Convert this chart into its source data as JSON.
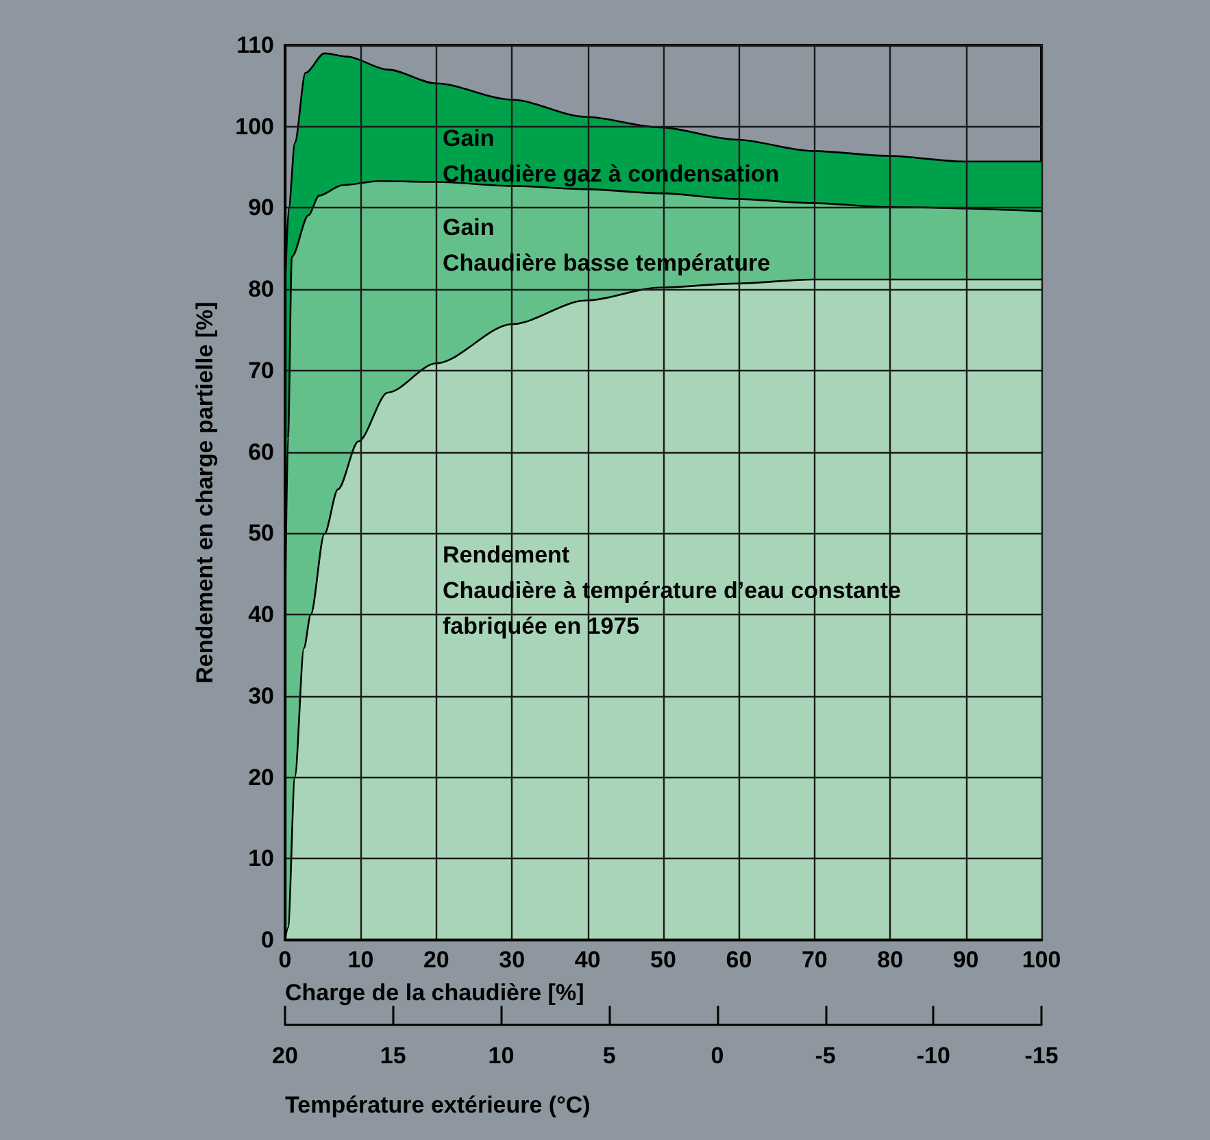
{
  "chart_data": {
    "type": "area",
    "xlabel": "Charge de la chaudière [%]",
    "ylabel": "Rendement en charge partielle [%]",
    "x2label": "Température extérieure (°C)",
    "series": [
      {
        "color": "#00a14b",
        "x": [
          0,
          0.5,
          1.3,
          2.7,
          5.2,
          8.2,
          13.6,
          20,
          30,
          39.7,
          49.6,
          59.6,
          69.7,
          79.7,
          89.7,
          100
        ],
        "values": [
          80,
          90,
          98,
          106.6,
          109,
          108.6,
          107,
          105.3,
          103.3,
          101.2,
          99.9,
          98.4,
          97,
          96.4,
          95.7,
          95.7
        ]
      },
      {
        "color": "#64c08a",
        "x": [
          0,
          0.4,
          0.9,
          3.1,
          4.5,
          7.6,
          12.5,
          20,
          30,
          39.7,
          49.6,
          59.6,
          69.7,
          79.7,
          100
        ],
        "values": [
          40,
          61.7,
          84,
          89.1,
          91.5,
          92.8,
          93.3,
          93.2,
          92.7,
          92.3,
          91.8,
          91.1,
          90.6,
          90.1,
          89.6
        ]
      },
      {
        "color": "#a8d5b8",
        "x": [
          0,
          0.4,
          1.3,
          2.5,
          3.4,
          5.2,
          7,
          9.7,
          13.6,
          20,
          30,
          39.7,
          49.6,
          59.6,
          69.7,
          100
        ],
        "values": [
          0,
          1.5,
          20,
          35.9,
          40,
          49.9,
          55.4,
          61.3,
          67.3,
          70.9,
          75.7,
          78.6,
          80.2,
          80.7,
          81.2,
          81.2
        ]
      }
    ],
    "annotations": [
      "Gain\nChaudière gaz à condensation",
      "Gain\nChaudière basse température",
      "Rendement\nChaudière à température d’eau constante\nfabriquée en 1975"
    ],
    "xlim": [
      0,
      100
    ],
    "xticks": [
      0,
      10,
      20,
      30,
      40,
      50,
      60,
      70,
      80,
      90,
      100
    ],
    "ylim": [
      0,
      110
    ],
    "yticks": [
      0,
      10,
      20,
      30,
      40,
      50,
      60,
      70,
      80,
      90,
      100,
      110
    ],
    "x2lim": [
      20,
      -15
    ],
    "x2ticks": [
      20,
      15,
      10,
      5,
      0,
      -5,
      -10,
      -15
    ],
    "grid": true,
    "marker": "none",
    "line_style": "solid"
  }
}
